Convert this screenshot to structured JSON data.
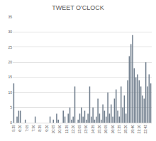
{
  "chart_data": {
    "type": "bar",
    "title": "TWEET O'CLOCK",
    "categories": [
      "5:35",
      null,
      null,
      null,
      "6:20",
      null,
      null,
      null,
      "7:05",
      null,
      null,
      null,
      "7:50",
      null,
      null,
      null,
      "8:35",
      null,
      null,
      null,
      "9:20",
      null,
      null,
      null,
      "10:05",
      null,
      null,
      null,
      "10:50",
      null,
      null,
      null,
      "11:35",
      null,
      null,
      null,
      "12:20",
      null,
      null,
      null,
      "13:05",
      null,
      null,
      null,
      "13:50",
      null,
      null,
      null,
      "14:35",
      null,
      null,
      null,
      "15:20",
      null,
      null,
      null,
      "16:05",
      null,
      null,
      null,
      "16:50",
      null,
      null,
      null,
      "17:35",
      null,
      null,
      null,
      "18:20",
      null,
      null,
      null,
      "19:40",
      null,
      null,
      null,
      "21:10",
      null,
      null,
      null,
      "22:43",
      null,
      null,
      null
    ],
    "values": [
      13,
      0,
      2,
      4,
      4,
      0,
      0,
      1,
      0,
      0,
      0,
      0,
      0,
      2,
      0,
      0,
      0,
      0,
      0,
      0,
      0,
      0,
      2,
      0,
      1,
      0,
      3,
      1,
      0,
      0,
      4,
      2,
      0,
      3,
      5,
      1,
      2,
      12,
      0,
      1,
      3,
      5,
      2,
      4,
      1,
      3,
      12,
      2,
      5,
      1,
      2,
      8,
      3,
      1,
      6,
      4,
      2,
      10,
      3,
      6,
      2,
      8,
      11,
      4,
      2,
      12,
      5,
      9,
      3,
      14,
      22,
      26,
      29,
      18,
      15,
      16,
      14,
      12,
      9,
      8,
      20,
      12,
      16,
      13
    ],
    "color": "#6f7d8c",
    "ylim": [
      0,
      35
    ],
    "yticks": [
      0,
      5,
      10,
      15,
      20,
      25,
      30,
      35
    ],
    "grid": true
  }
}
